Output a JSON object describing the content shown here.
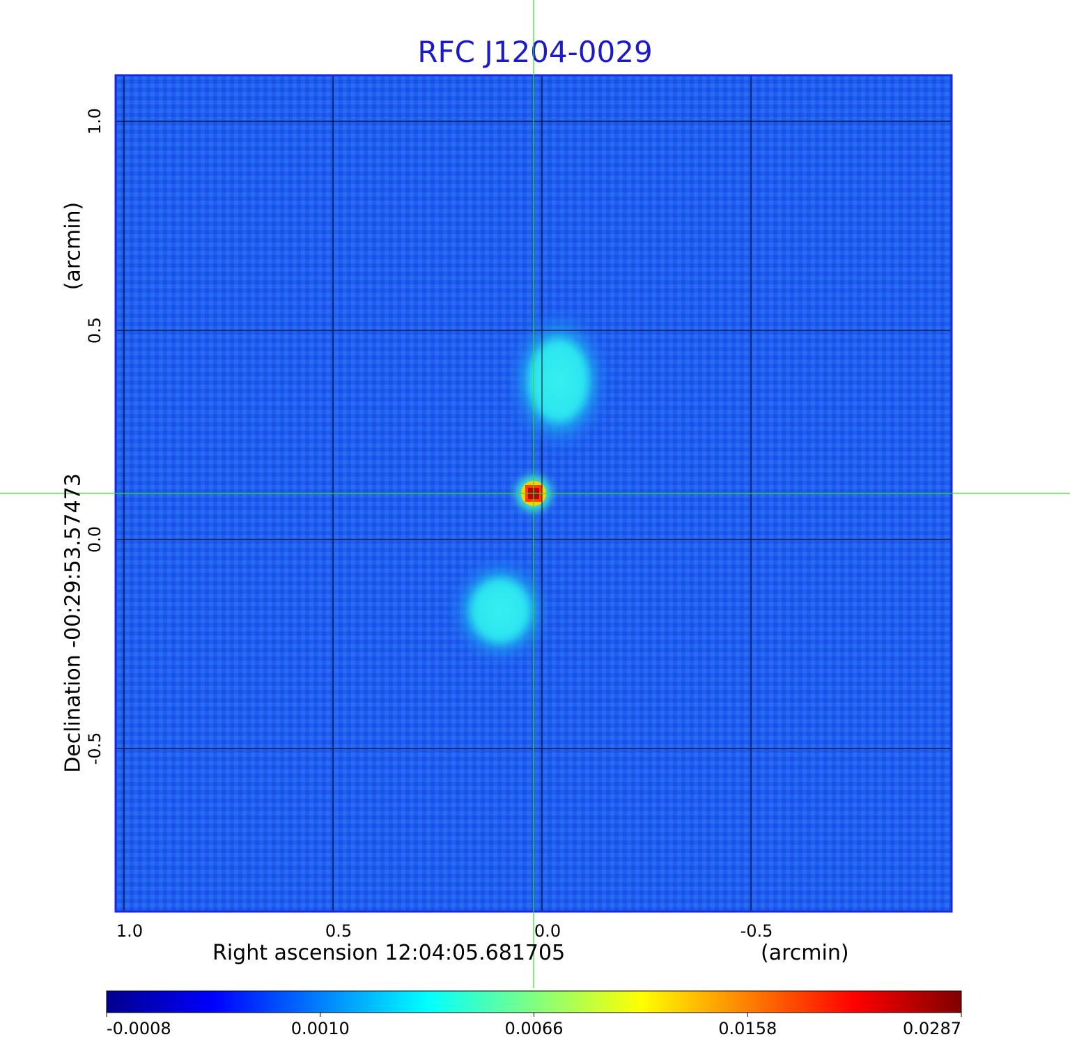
{
  "title": "RFC J1204-0029",
  "chart_data": {
    "type": "heatmap",
    "title": "RFC J1204-0029",
    "xlabel": "Right ascension  12:04:05.681705",
    "xunit": "(arcmin)",
    "ylabel": "Declination  -00:29:53.57473",
    "yunit": "(arcmin)",
    "xlim": [
      1.02,
      -0.98
    ],
    "ylim": [
      -0.89,
      1.11
    ],
    "xticks": [
      1.0,
      0.5,
      0.0,
      -0.5
    ],
    "xtick_labels": [
      "1.0",
      "0.5",
      "0.0",
      "-0.5"
    ],
    "yticks": [
      1.0,
      0.5,
      0.0,
      -0.5
    ],
    "ytick_labels": [
      "1.0",
      "0.5",
      "0.0",
      "-0.5"
    ],
    "grid": true,
    "colormap": "jet",
    "colorbar_ticks": [
      "-0.0008",
      "0.0010",
      "0.0066",
      "0.0158",
      "0.0287"
    ],
    "colorbar_range": [
      -0.0008,
      0.0287
    ],
    "crosshair": {
      "x": 0.02,
      "y": 0.11
    },
    "components": [
      {
        "name": "core",
        "x": 0.02,
        "y": 0.11,
        "peak": 0.0287
      },
      {
        "name": "north-lobe",
        "x": -0.04,
        "y": 0.38,
        "peak": 0.0045
      },
      {
        "name": "south-lobe",
        "x": 0.1,
        "y": -0.17,
        "peak": 0.005
      }
    ]
  },
  "colors": {
    "title": "#1a1acc",
    "crosshair": "#33dd33",
    "frame": "#1a2ad6",
    "grid": "#000000"
  }
}
